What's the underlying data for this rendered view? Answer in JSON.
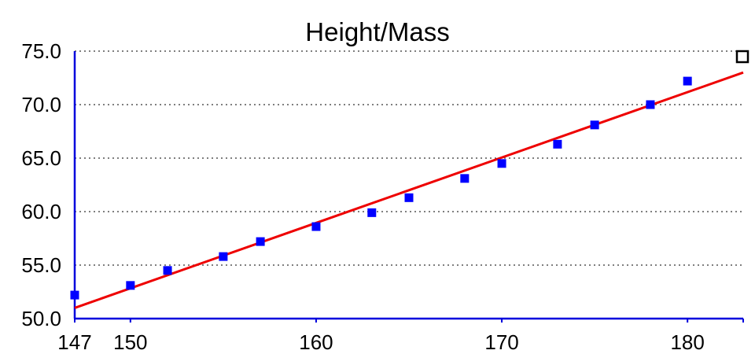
{
  "chart_data": {
    "type": "scatter",
    "title": "Height/Mass",
    "xlabel": "",
    "ylabel": "",
    "xlim": [
      147,
      183
    ],
    "ylim": [
      50,
      75
    ],
    "x_ticks": [
      147,
      150,
      160,
      170,
      180
    ],
    "y_ticks": [
      "50.0",
      "55.0",
      "60.0",
      "65.0",
      "70.0",
      "75.0"
    ],
    "grid": "horizontal dotted",
    "series": [
      {
        "kind": "points",
        "color": "#0000ff",
        "marker": "square",
        "points": [
          {
            "x": 147,
            "y": 52.2
          },
          {
            "x": 150,
            "y": 53.1
          },
          {
            "x": 152,
            "y": 54.5
          },
          {
            "x": 155,
            "y": 55.8
          },
          {
            "x": 157,
            "y": 57.2
          },
          {
            "x": 160,
            "y": 58.6
          },
          {
            "x": 163,
            "y": 59.9
          },
          {
            "x": 165,
            "y": 61.3
          },
          {
            "x": 168,
            "y": 63.1
          },
          {
            "x": 170,
            "y": 64.5
          },
          {
            "x": 173,
            "y": 66.3
          },
          {
            "x": 175,
            "y": 68.1
          },
          {
            "x": 178,
            "y": 70.0
          },
          {
            "x": 180,
            "y": 72.2
          }
        ]
      },
      {
        "kind": "fit-line",
        "color": "#ee0000",
        "points": [
          {
            "x": 147,
            "y": 51.0
          },
          {
            "x": 183,
            "y": 73.0
          }
        ]
      }
    ],
    "colors": {
      "axis": "#0000dd",
      "grid": "#555555",
      "points": "#0000ff",
      "fit": "#ee0000"
    },
    "corner_marker": "hollow-square-icon"
  }
}
